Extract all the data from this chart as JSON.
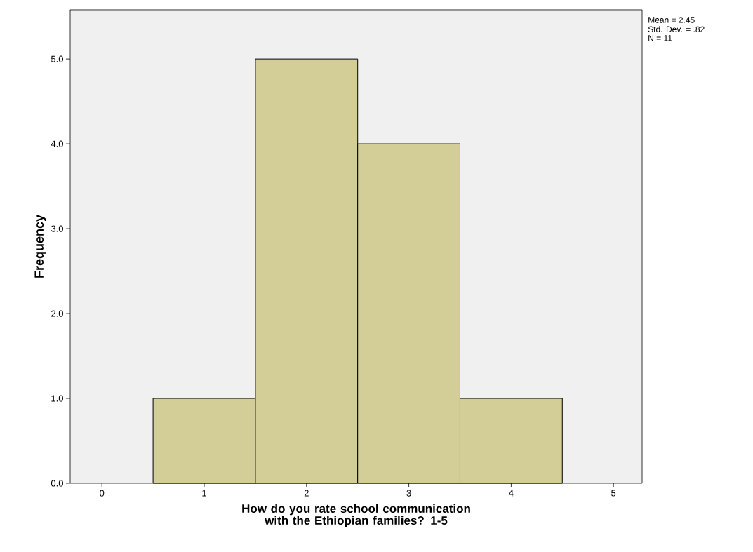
{
  "chart_data": {
    "type": "histogram",
    "xlabel": "How do you rate school communication with the Ethiopian families? 1-5",
    "ylabel": "Frequency",
    "bins": [
      0.5,
      1.5,
      2.5,
      3.5,
      4.5
    ],
    "values": [
      1,
      5,
      4,
      1
    ],
    "color": "#d3ce97",
    "xlim": [
      -0.31,
      5.28
    ],
    "ylim": [
      0,
      5.58
    ],
    "xticks": [
      0,
      1,
      2,
      3,
      4,
      5
    ],
    "yticks": [
      {
        "value": 0,
        "label": "0.0"
      },
      {
        "value": 1,
        "label": "1.0"
      },
      {
        "value": 2,
        "label": "2.0"
      },
      {
        "value": 3,
        "label": "3.0"
      },
      {
        "value": 4,
        "label": "4.0"
      },
      {
        "value": 5,
        "label": "5.0"
      }
    ],
    "annotations": [
      "Mean = 2.45",
      "Std. Dev. = .82",
      "N = 11"
    ]
  }
}
